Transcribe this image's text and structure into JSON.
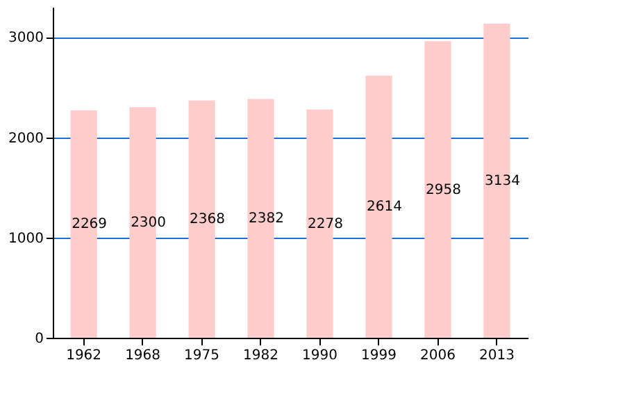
{
  "chart_data": {
    "type": "bar",
    "categories": [
      "1962",
      "1968",
      "1975",
      "1982",
      "1990",
      "1999",
      "2006",
      "2013"
    ],
    "values": [
      2269,
      2300,
      2368,
      2382,
      2278,
      2614,
      2958,
      3134
    ],
    "color": "#ffcccc",
    "ylim": [
      0,
      3300
    ],
    "yticks": [
      0,
      1000,
      2000,
      3000
    ],
    "grid": "y",
    "data_labels": true
  }
}
